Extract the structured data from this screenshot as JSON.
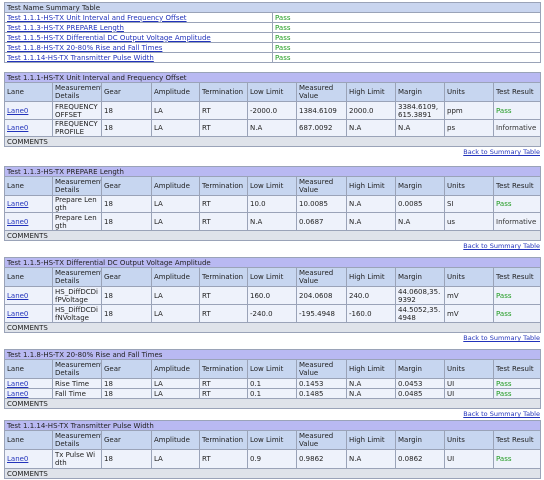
{
  "summary": {
    "title": "Test Name Summary Table",
    "rows": [
      [
        "Test 1.1.1-HS-TX Unit Interval and Frequency Offset",
        "Pass"
      ],
      [
        "Test 1.1.3-HS-TX PREPARE Length",
        "Pass"
      ],
      [
        "Test 1.1.5-HS-TX Differential DC Output Voltage Amplitude",
        "Pass"
      ],
      [
        "Test 1.1.8-HS-TX 20-80% Rise and Fall Times",
        "Pass"
      ],
      [
        "Test 1.1.14-HS-TX Transmitter Pulse Width",
        "Pass"
      ]
    ]
  },
  "columns": [
    "Lane",
    "Measurement Details",
    "Gear",
    "Amplitude",
    "Termination",
    "Low Limit",
    "Measured Value",
    "High Limit",
    "Margin",
    "Units",
    "Test Result"
  ],
  "comments_label": "COMMENTS",
  "back_link": "Back to Summary Table",
  "sections": [
    {
      "title": "Test 1.1.1-HS-TX Unit Interval and Frequency Offset",
      "rows": [
        [
          "Lane0",
          "FREQUENCY OFFSET",
          "18",
          "LA",
          "RT",
          "-2000.0",
          "1384.6109",
          "2000.0",
          "3384.6109,615.3891",
          "ppm",
          "Pass"
        ],
        [
          "Lane0",
          "FREQUENCY PROFILE",
          "18",
          "LA",
          "RT",
          "N.A",
          "687.0092",
          "N.A",
          "N.A",
          "ps",
          "Informative"
        ]
      ]
    },
    {
      "title": "Test 1.1.3-HS-TX PREPARE Length",
      "rows": [
        [
          "Lane0",
          "Prepare Length",
          "18",
          "LA",
          "RT",
          "10.0",
          "10.0085",
          "N.A",
          "0.0085",
          "SI",
          "Pass"
        ],
        [
          "Lane0",
          "Prepare Length",
          "18",
          "LA",
          "RT",
          "N.A",
          "0.0687",
          "N.A",
          "N.A",
          "us",
          "Informative"
        ]
      ]
    },
    {
      "title": "Test 1.1.5-HS-TX Differential DC Output Voltage Amplitude",
      "rows": [
        [
          "Lane0",
          "HS_DiffDCDifPVoltage",
          "18",
          "LA",
          "RT",
          "160.0",
          "204.0608",
          "240.0",
          "44.0608,35.9392",
          "mV",
          "Pass"
        ],
        [
          "Lane0",
          "HS_DiffDCDifNVoltage",
          "18",
          "LA",
          "RT",
          "-240.0",
          "-195.4948",
          "-160.0",
          "44.5052,35.4948",
          "mV",
          "Pass"
        ]
      ]
    },
    {
      "title": "Test 1.1.8-HS-TX 20-80% Rise and Fall Times",
      "rows": [
        [
          "Lane0",
          "Rise Time",
          "18",
          "LA",
          "RT",
          "0.1",
          "0.1453",
          "N.A",
          "0.0453",
          "UI",
          "Pass"
        ],
        [
          "Lane0",
          "Fall Time",
          "18",
          "LA",
          "RT",
          "0.1",
          "0.1485",
          "N.A",
          "0.0485",
          "UI",
          "Pass"
        ]
      ]
    },
    {
      "title": "Test 1.1.14-HS-TX Transmitter Pulse Width",
      "rows": [
        [
          "Lane0",
          "Tx Pulse Width",
          "18",
          "LA",
          "RT",
          "0.9",
          "0.9862",
          "N.A",
          "0.0862",
          "UI",
          "Pass"
        ]
      ]
    }
  ]
}
